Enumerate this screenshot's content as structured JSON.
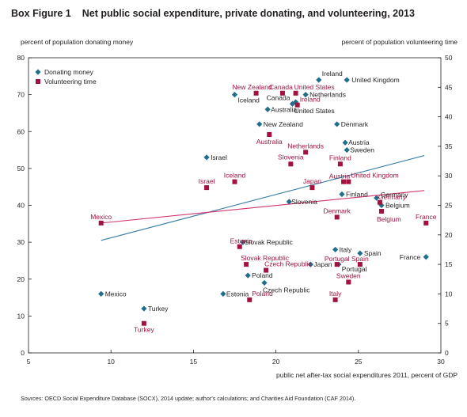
{
  "figure": {
    "label": "Box Figure 1",
    "title": "Net public social expenditure, private donating, and volunteering, 2013",
    "sources_label": "Sources:",
    "sources_text": "OECD Social Expenditure Database (SOCX), 2014 update; author's calculations; and Charities Aid Foundation (CAF 2014)."
  },
  "colors": {
    "donating": "#1f6e8c",
    "volunteering": "#a3123e",
    "trend_donating": "#3a7ca5",
    "trend_volunteering": "#d0336a",
    "axis": "#231f20",
    "text": "#231f20"
  },
  "chart_data": {
    "type": "scatter",
    "xlabel": "public net after-tax social expenditures 2011, percent of GDP",
    "ylabel_left": "percent of population donating money",
    "ylabel_right": "percent of population volunteering time",
    "xlim": [
      5,
      30
    ],
    "ylim_left": [
      0,
      80
    ],
    "ylim_right": [
      0,
      50
    ],
    "x_ticks": [
      5,
      10,
      15,
      20,
      25,
      30
    ],
    "y_ticks_left": [
      0,
      10,
      20,
      30,
      40,
      50,
      60,
      70,
      80
    ],
    "y_ticks_right": [
      0,
      5,
      10,
      15,
      20,
      25,
      30,
      35,
      40,
      45,
      50
    ],
    "grid": false,
    "legend_position": "top-left",
    "series": [
      {
        "name": "Donating money",
        "marker": "diamond",
        "axis": "left",
        "trend": [
          [
            9.4,
            30.5
          ],
          [
            29.0,
            53.5
          ]
        ],
        "points": [
          {
            "label": "Mexico",
            "x": 9.4,
            "y": 16
          },
          {
            "label": "Turkey",
            "x": 12.0,
            "y": 12
          },
          {
            "label": "Israel",
            "x": 15.8,
            "y": 53
          },
          {
            "label": "Estonia",
            "x": 16.8,
            "y": 16
          },
          {
            "label": "Iceland",
            "x": 17.5,
            "y": 70
          },
          {
            "label": "Slovak Republic",
            "x": 18.0,
            "y": 30
          },
          {
            "label": "Poland",
            "x": 18.3,
            "y": 21
          },
          {
            "label": "New Zealand",
            "x": 19.0,
            "y": 62
          },
          {
            "label": "Czech Republic",
            "x": 19.3,
            "y": 19
          },
          {
            "label": "Australia",
            "x": 19.5,
            "y": 66
          },
          {
            "label": "Slovenia",
            "x": 20.8,
            "y": 41
          },
          {
            "label": "Canada",
            "x": 21.0,
            "y": 67.5
          },
          {
            "label": "United States",
            "x": 21.2,
            "y": 68
          },
          {
            "label": "Netherlands",
            "x": 21.8,
            "y": 70
          },
          {
            "label": "Japan",
            "x": 22.1,
            "y": 24
          },
          {
            "label": "Ireland",
            "x": 22.6,
            "y": 74
          },
          {
            "label": "Italy",
            "x": 23.6,
            "y": 28
          },
          {
            "label": "Portugal",
            "x": 23.8,
            "y": 24
          },
          {
            "label": "Denmark",
            "x": 23.7,
            "y": 62
          },
          {
            "label": "Finland",
            "x": 24.0,
            "y": 43
          },
          {
            "label": "Austria",
            "x": 24.2,
            "y": 57
          },
          {
            "label": "Sweden",
            "x": 24.3,
            "y": 55
          },
          {
            "label": "United Kingdom",
            "x": 24.3,
            "y": 74
          },
          {
            "label": "Spain",
            "x": 25.1,
            "y": 27
          },
          {
            "label": "Germany",
            "x": 26.1,
            "y": 42
          },
          {
            "label": "Belgium",
            "x": 26.4,
            "y": 40
          },
          {
            "label": "France",
            "x": 29.1,
            "y": 26
          }
        ]
      },
      {
        "name": "Volunteering time",
        "marker": "square",
        "axis": "right",
        "trend": [
          [
            9.4,
            22
          ],
          [
            29.0,
            27.5
          ]
        ],
        "points": [
          {
            "label": "Mexico",
            "x": 9.4,
            "y": 22
          },
          {
            "label": "Turkey",
            "x": 12.0,
            "y": 5
          },
          {
            "label": "Israel",
            "x": 15.8,
            "y": 28
          },
          {
            "label": "Iceland",
            "x": 17.5,
            "y": 29
          },
          {
            "label": "Estonia",
            "x": 17.8,
            "y": 18
          },
          {
            "label": "Slovak Republic",
            "x": 18.2,
            "y": 15
          },
          {
            "label": "Poland",
            "x": 18.4,
            "y": 9
          },
          {
            "label": "New Zealand",
            "x": 18.8,
            "y": 44
          },
          {
            "label": "Czech Republic",
            "x": 19.4,
            "y": 14
          },
          {
            "label": "Australia",
            "x": 19.6,
            "y": 37
          },
          {
            "label": "Canada",
            "x": 20.4,
            "y": 44
          },
          {
            "label": "Slovenia",
            "x": 20.9,
            "y": 32
          },
          {
            "label": "United States",
            "x": 21.2,
            "y": 44
          },
          {
            "label": "Ireland",
            "x": 21.3,
            "y": 42
          },
          {
            "label": "Netherlands",
            "x": 21.8,
            "y": 34
          },
          {
            "label": "Japan",
            "x": 22.2,
            "y": 28
          },
          {
            "label": "Italy",
            "x": 23.6,
            "y": 9
          },
          {
            "label": "Portugal",
            "x": 23.7,
            "y": 15
          },
          {
            "label": "Denmark",
            "x": 23.7,
            "y": 23
          },
          {
            "label": "Finland",
            "x": 23.9,
            "y": 32
          },
          {
            "label": "Austria",
            "x": 24.1,
            "y": 29
          },
          {
            "label": "Sweden",
            "x": 24.4,
            "y": 12
          },
          {
            "label": "United Kingdom",
            "x": 24.4,
            "y": 29
          },
          {
            "label": "Spain",
            "x": 25.1,
            "y": 15
          },
          {
            "label": "Germany",
            "x": 26.3,
            "y": 25.5
          },
          {
            "label": "Belgium",
            "x": 26.4,
            "y": 24
          },
          {
            "label": "France",
            "x": 29.1,
            "y": 22
          }
        ]
      }
    ]
  }
}
